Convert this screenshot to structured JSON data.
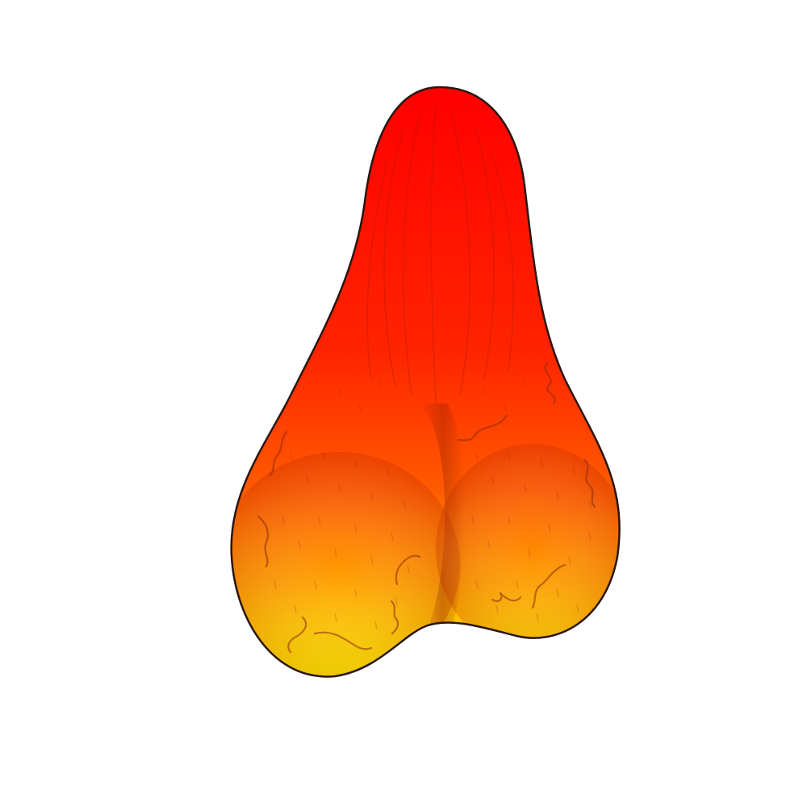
{
  "illustration": {
    "subject": "gradient-organic-shape",
    "colors": {
      "top": "#ff0000",
      "middle": "#ff4d00",
      "lower": "#ffb000",
      "bottom": "#ffff00",
      "outline": "#2a1610",
      "detail": "#7a2a10",
      "background": "#ffffff"
    }
  }
}
